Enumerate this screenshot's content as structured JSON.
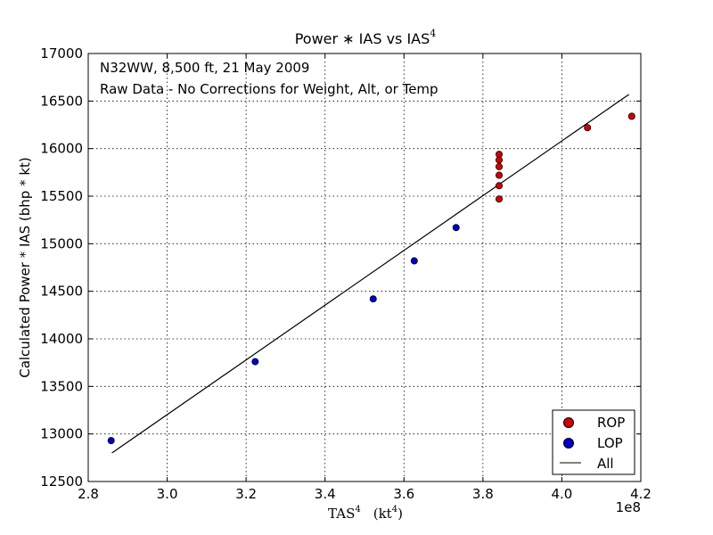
{
  "chart_data": {
    "type": "scatter",
    "title_main": "Power  ∗  IAS  vs  IAS",
    "title_sup": "4",
    "xlabel_main": "TAS",
    "xlabel_sup": "4",
    "xlabel_unit": "(kt",
    "xlabel_unit_sup": "4",
    "xlabel_unit_close": ")",
    "ylabel": "Calculated Power * IAS (bhp * kt)",
    "offset_label": "1e8",
    "annotations": [
      "N32WW, 8,500 ft, 21 May 2009",
      "Raw Data - No Corrections for Weight, Alt, or Temp"
    ],
    "xlim": [
      2.8,
      4.2
    ],
    "ylim": [
      12500,
      17000
    ],
    "x_ticks": [
      2.8,
      3.0,
      3.2,
      3.4,
      3.6,
      3.8,
      4.0,
      4.2
    ],
    "x_tick_labels": [
      "2.8",
      "3.0",
      "3.2",
      "3.4",
      "3.6",
      "3.8",
      "4.0",
      "4.2"
    ],
    "y_ticks": [
      12500,
      13000,
      13500,
      14000,
      14500,
      15000,
      15500,
      16000,
      16500,
      17000
    ],
    "y_tick_labels": [
      "12500",
      "13000",
      "13500",
      "14000",
      "14500",
      "15000",
      "15500",
      "16000",
      "16500",
      "17000"
    ],
    "grid": true,
    "legend_position": "bottom-right",
    "series": [
      {
        "name": "ROP",
        "kind": "scatter",
        "color": "#d40000",
        "points": [
          [
            3.841,
            15470
          ],
          [
            3.841,
            15610
          ],
          [
            3.841,
            15720
          ],
          [
            3.841,
            15810
          ],
          [
            3.841,
            15880
          ],
          [
            3.841,
            15940
          ],
          [
            4.065,
            16220
          ],
          [
            4.177,
            16340
          ]
        ]
      },
      {
        "name": "LOP",
        "kind": "scatter",
        "color": "#0000cc",
        "points": [
          [
            2.858,
            12930
          ],
          [
            3.223,
            13760
          ],
          [
            3.522,
            14420
          ],
          [
            3.626,
            14820
          ],
          [
            3.732,
            15170
          ]
        ]
      },
      {
        "name": "All",
        "kind": "line",
        "color": "#000000",
        "points": [
          [
            2.86,
            12800
          ],
          [
            4.17,
            16570
          ]
        ]
      }
    ]
  }
}
